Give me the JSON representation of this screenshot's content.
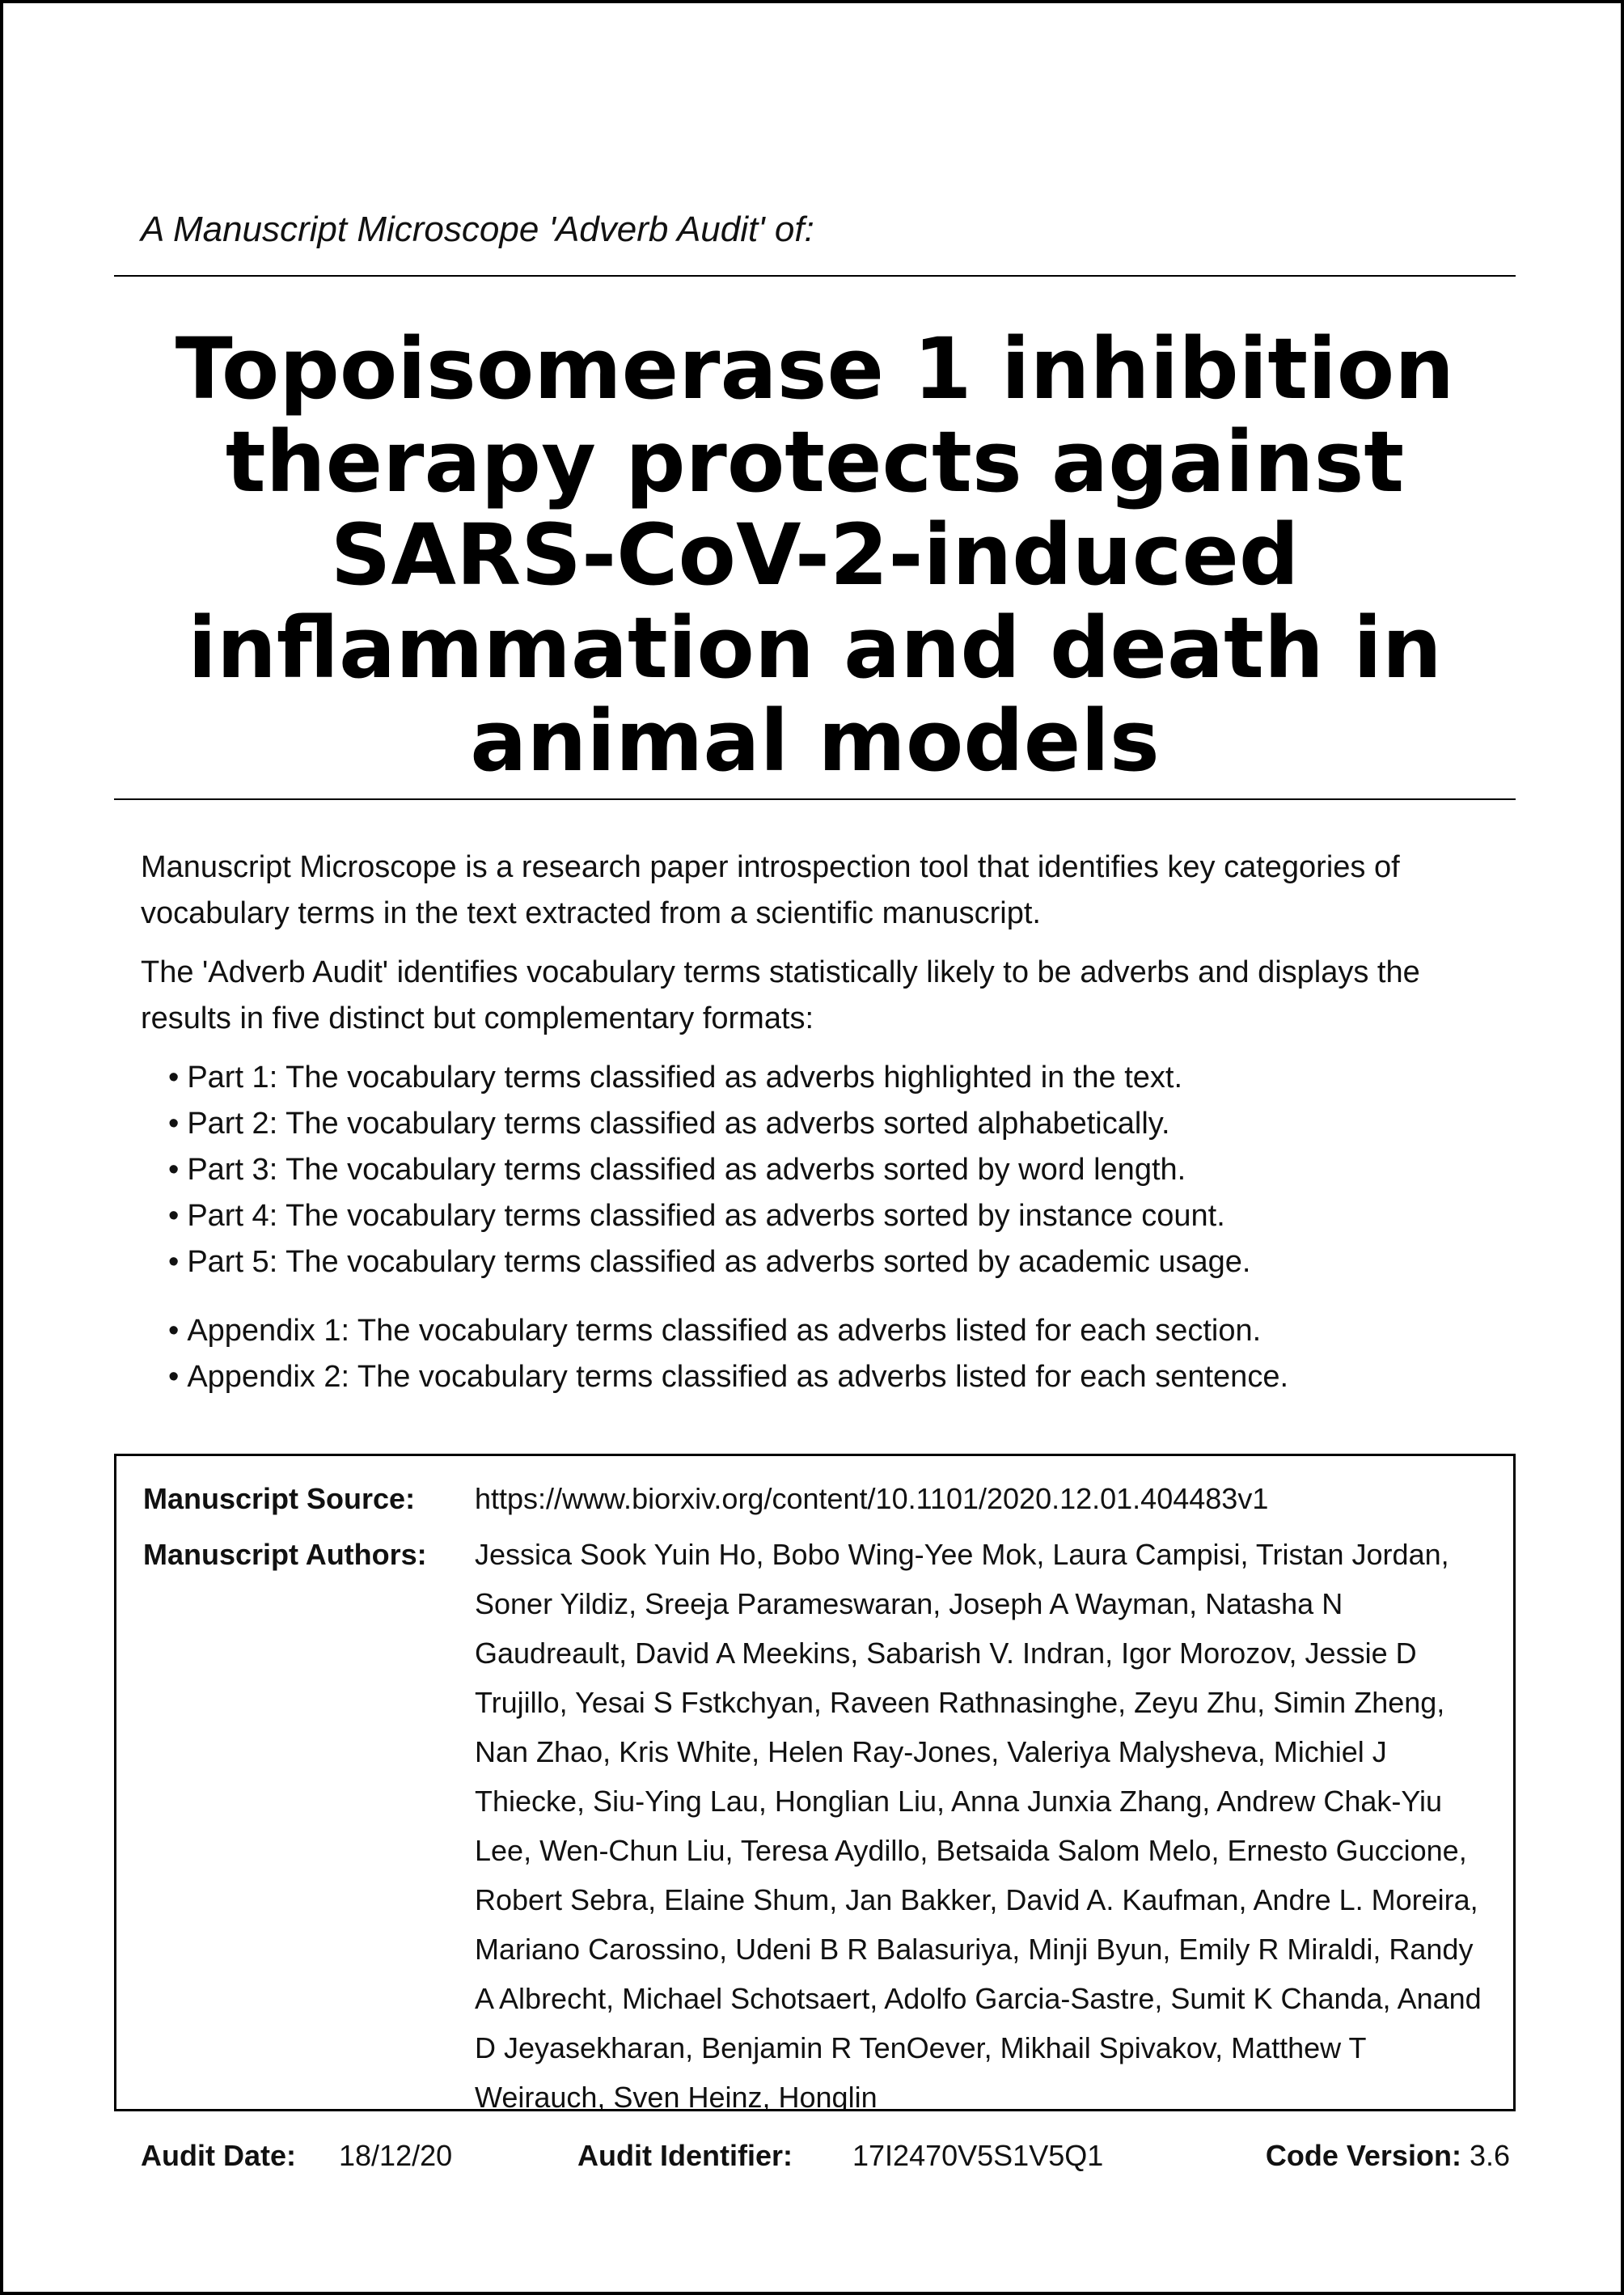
{
  "header": {
    "label": "A Manuscript Microscope 'Adverb Audit' of:"
  },
  "title": "Topoisomerase 1 inhibition therapy protects against SARS-CoV-2-induced inflammation and death in animal models",
  "intro": {
    "paragraph1": "Manuscript Microscope is a research paper introspection tool that identifies key categories of vocabulary terms in the text extracted from a scientific manuscript.",
    "paragraph2": "The 'Adverb Audit' identifies vocabulary terms statistically likely to be adverbs and displays the results in five distinct but complementary formats:",
    "parts": [
      "Part 1: The vocabulary terms classified as adverbs highlighted in the text.",
      "Part 2: The vocabulary terms classified as adverbs sorted alphabetically.",
      "Part 3: The vocabulary terms classified as adverbs sorted by word length.",
      "Part 4: The vocabulary terms classified as adverbs sorted by instance count.",
      "Part 5: The vocabulary terms classified as adverbs sorted by academic usage."
    ],
    "appendices": [
      "Appendix 1: The vocabulary terms classified as adverbs listed for each section.",
      "Appendix 2: The vocabulary terms classified as adverbs listed for each sentence."
    ]
  },
  "meta": {
    "source_label": "Manuscript Source:",
    "source_value": "https://www.biorxiv.org/content/10.1101/2020.12.01.404483v1",
    "authors_label": "Manuscript Authors:",
    "authors_value": "Jessica Sook Yuin Ho, Bobo Wing-Yee Mok, Laura Campisi, Tristan Jordan, Soner Yildiz, Sreeja Parameswaran, Joseph A Wayman, Natasha N Gaudreault, David A Meekins, Sabarish V. Indran, Igor Morozov, Jessie D Trujillo, Yesai S Fstkchyan, Raveen Rathnasinghe, Zeyu Zhu, Simin Zheng, Nan Zhao, Kris White, Helen Ray-Jones, Valeriya Malysheva, Michiel J Thiecke, Siu-Ying Lau, Honglian Liu, Anna Junxia Zhang, Andrew Chak-Yiu Lee, Wen-Chun Liu, Teresa Aydillo, Betsaida Salom Melo, Ernesto Guccione, Robert Sebra, Elaine Shum, Jan Bakker, David A. Kaufman, Andre L. Moreira, Mariano Carossino, Udeni B R Balasuriya, Minji Byun, Emily R Miraldi, Randy A Albrecht, Michael Schotsaert, Adolfo Garcia-Sastre, Sumit K Chanda, Anand D Jeyasekharan, Benjamin R TenOever, Mikhail Spivakov, Matthew T Weirauch, Sven Heinz, Honglin"
  },
  "footer": {
    "audit_date_label": "Audit Date:",
    "audit_date_value": "18/12/20",
    "audit_id_label": "Audit Identifier:",
    "audit_id_value": "17I2470V5S1V5Q1",
    "code_version_label": "Code Version:",
    "code_version_value": "3.6"
  }
}
